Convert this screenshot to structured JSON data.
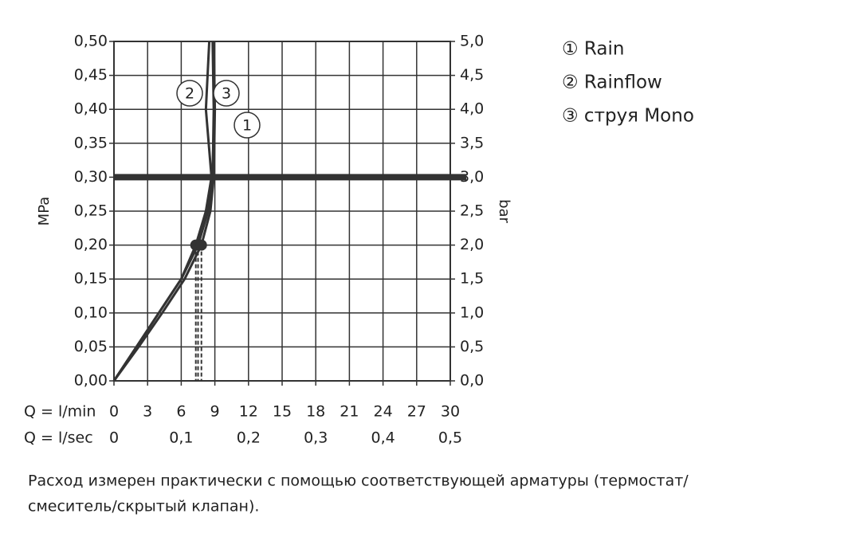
{
  "chart_data": {
    "type": "line",
    "x_label": "Q = l/min",
    "x2_label": "Q = l/sec",
    "y_label": "MPa",
    "y2_label": "bar",
    "xlim": [
      0,
      30
    ],
    "xticks": [
      0,
      3,
      6,
      9,
      12,
      15,
      18,
      21,
      24,
      27,
      30
    ],
    "x2lim": [
      0,
      0.5
    ],
    "x2ticks": [
      0,
      {
        "value": 0.1,
        "label": "0,1"
      },
      {
        "value": 0.2,
        "label": "0,2"
      },
      {
        "value": 0.3,
        "label": "0,3"
      },
      {
        "value": 0.4,
        "label": "0,4"
      },
      {
        "value": 0.5,
        "label": "0,5"
      }
    ],
    "ylim": [
      0,
      0.5
    ],
    "yticks": [
      {
        "value": 0,
        "label": "0,00"
      },
      {
        "value": 0.05,
        "label": "0,05"
      },
      {
        "value": 0.1,
        "label": "0,10"
      },
      {
        "value": 0.15,
        "label": "0,15"
      },
      {
        "value": 0.2,
        "label": "0,20"
      },
      {
        "value": 0.25,
        "label": "0,25"
      },
      {
        "value": 0.3,
        "label": "0,30"
      },
      {
        "value": 0.35,
        "label": "0,35"
      },
      {
        "value": 0.4,
        "label": "0,40"
      },
      {
        "value": 0.45,
        "label": "0,45"
      },
      {
        "value": 0.5,
        "label": "0,50"
      }
    ],
    "y2lim": [
      0,
      5
    ],
    "y2ticks": [
      {
        "value": 0,
        "label": "0,0"
      },
      {
        "value": 0.5,
        "label": "0,5"
      },
      {
        "value": 1,
        "label": "1,0"
      },
      {
        "value": 1.5,
        "label": "1,5"
      },
      {
        "value": 2,
        "label": "2,0"
      },
      {
        "value": 2.5,
        "label": "2,5"
      },
      {
        "value": 3,
        "label": "3,0"
      },
      {
        "value": 3.5,
        "label": "3,5"
      },
      {
        "value": 4,
        "label": "4,0"
      },
      {
        "value": 4.5,
        "label": "4,5"
      },
      {
        "value": 5,
        "label": "5,0"
      }
    ],
    "grid": true,
    "reference_line": 0.3,
    "series": [
      {
        "name": "① Rain",
        "tag": "1",
        "color": "#333333",
        "x": [
          0,
          2,
          4,
          6,
          7.5,
          8.4,
          8.8,
          8.9,
          8.8
        ],
        "values": [
          0,
          0.05,
          0.1,
          0.15,
          0.2,
          0.25,
          0.3,
          0.4,
          0.5
        ]
      },
      {
        "name": "② Rainflow",
        "tag": "2",
        "color": "#333333",
        "x": [
          0,
          2,
          4,
          6,
          7.3,
          8.2,
          8.7,
          8.2,
          8.5
        ],
        "values": [
          0,
          0.05,
          0.1,
          0.15,
          0.2,
          0.25,
          0.3,
          0.4,
          0.5
        ]
      },
      {
        "name": "③ струя Mono",
        "tag": "3",
        "color": "#333333",
        "x": [
          0,
          2.2,
          4.3,
          6.3,
          7.8,
          8.6,
          8.9,
          9.0,
          8.9
        ],
        "values": [
          0,
          0.05,
          0.1,
          0.15,
          0.2,
          0.25,
          0.3,
          0.4,
          0.5
        ]
      }
    ],
    "footnote_lines": [
      "Расход измерен практически с помощью соответствующей арматуры (термостат/",
      "смеситель/скрытый клапан)."
    ]
  }
}
